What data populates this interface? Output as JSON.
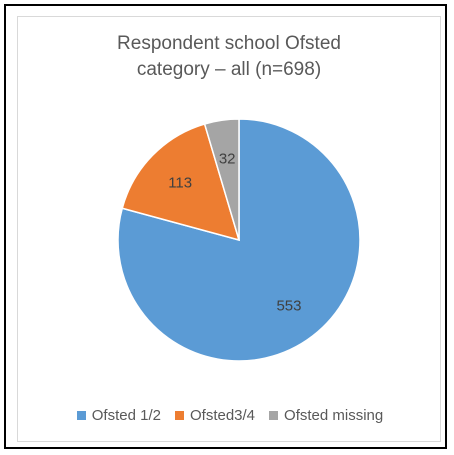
{
  "chart_data": {
    "type": "pie",
    "title_lines": [
      "Respondent school Ofsted",
      "category – all (n=698)"
    ],
    "slices": [
      {
        "name": "Ofsted 1/2",
        "value": 553,
        "label": "553",
        "color": "#5b9bd5"
      },
      {
        "name": "Ofsted3/4",
        "value": 113,
        "label": "113",
        "color": "#ed7d31"
      },
      {
        "name": "Ofsted missing",
        "value": 32,
        "label": "32",
        "color": "#a5a5a5"
      }
    ],
    "start_angle_deg": 0,
    "direction": "clockwise",
    "legend_position": "bottom"
  }
}
